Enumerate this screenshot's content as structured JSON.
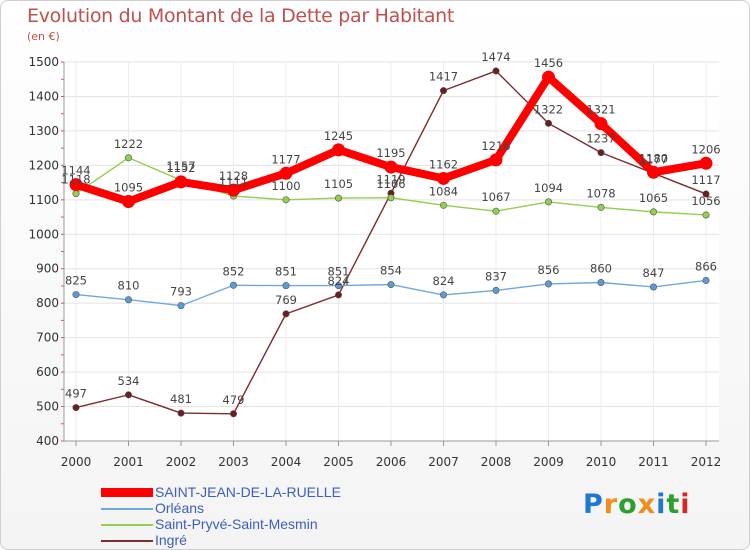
{
  "title": "Evolution du Montant de la Dette par Habitant",
  "unit": "(en €)",
  "chart_data": {
    "type": "line",
    "x": [
      "2000",
      "2001",
      "2002",
      "2003",
      "2004",
      "2005",
      "2006",
      "2007",
      "2008",
      "2009",
      "2010",
      "2011",
      "2012"
    ],
    "ylim": [
      400,
      1500
    ],
    "yticks": [
      400,
      500,
      600,
      700,
      800,
      900,
      1000,
      1100,
      1200,
      1300,
      1400,
      1500
    ],
    "grid": true,
    "legend_position": "bottom-left",
    "series": [
      {
        "name": "SAINT-JEAN-DE-LA-RUELLE",
        "color": "#ff0000",
        "values": [
          1144,
          1095,
          1152,
          1128,
          1177,
          1245,
          1195,
          1162,
          1216,
          1456,
          1321,
          1180,
          1206
        ]
      },
      {
        "name": "Orléans",
        "color": "#6fa8dc",
        "values": [
          825,
          810,
          793,
          852,
          851,
          851,
          854,
          824,
          837,
          856,
          860,
          847,
          866
        ]
      },
      {
        "name": "Saint-Pryvé-Saint-Mesmin",
        "color": "#92d050",
        "values": [
          1118,
          1222,
          1157,
          1111,
          1100,
          1105,
          1106,
          1084,
          1067,
          1094,
          1078,
          1065,
          1056
        ]
      },
      {
        "name": "Ingré",
        "color": "#7b2c2c",
        "values": [
          497,
          534,
          481,
          479,
          769,
          824,
          1119,
          1417,
          1474,
          1322,
          1237,
          1177,
          1117
        ]
      }
    ]
  },
  "logo": {
    "letters": [
      "P",
      "r",
      "o",
      "x",
      "i",
      "t",
      "i"
    ],
    "colors": [
      "#1f77d0",
      "#f28c1c",
      "#2ca02c",
      "#f28c1c",
      "#1f77d0",
      "#2ca02c",
      "#d62728"
    ]
  }
}
